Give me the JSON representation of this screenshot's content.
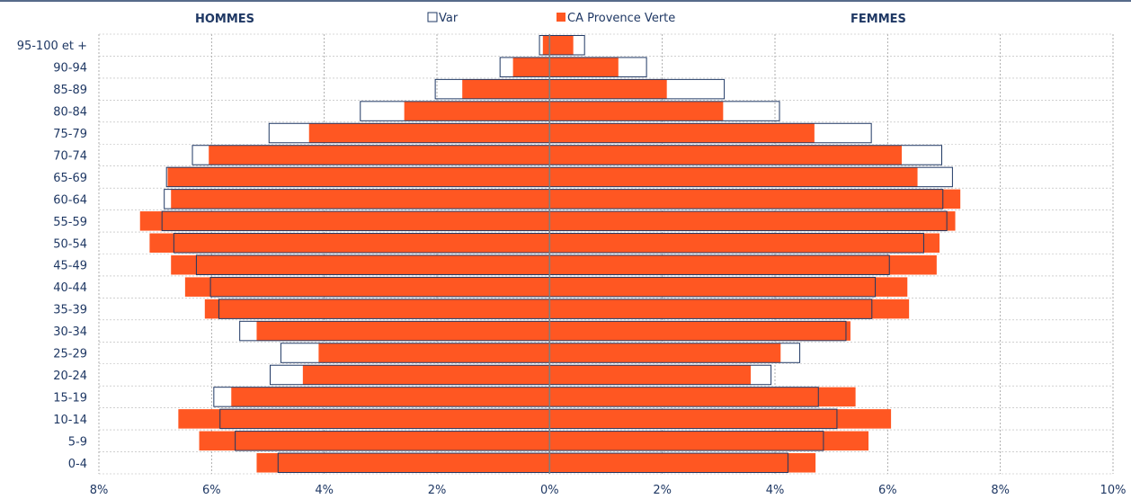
{
  "chart_data": {
    "type": "bar",
    "orientation": "horizontal-pyramid",
    "left_label": "HOMMES",
    "right_label": "FEMMES",
    "categories": [
      "95-100 et +",
      "90-94",
      "85-89",
      "80-84",
      "75-79",
      "70-74",
      "65-69",
      "60-64",
      "55-59",
      "50-54",
      "45-49",
      "40-44",
      "35-39",
      "30-34",
      "25-29",
      "20-24",
      "15-19",
      "10-14",
      "5-9",
      "0-4"
    ],
    "series": [
      {
        "name": "Var",
        "style": "outline",
        "color": "#1f3864",
        "men": [
          0.18,
          0.88,
          2.03,
          3.36,
          4.98,
          6.34,
          6.8,
          6.84,
          6.88,
          6.67,
          6.27,
          6.02,
          5.87,
          5.5,
          4.77,
          4.96,
          5.96,
          5.85,
          5.58,
          4.82
        ],
        "women": [
          0.62,
          1.72,
          3.1,
          4.08,
          5.71,
          6.96,
          7.15,
          6.98,
          7.05,
          6.64,
          6.03,
          5.78,
          5.72,
          5.26,
          4.44,
          3.93,
          4.77,
          5.1,
          4.86,
          4.23
        ]
      },
      {
        "name": "CA Provence Verte",
        "style": "filled",
        "color": "#ff5722",
        "men": [
          0.12,
          0.65,
          1.55,
          2.58,
          4.27,
          6.05,
          6.78,
          6.72,
          7.27,
          7.1,
          6.72,
          6.47,
          6.12,
          5.2,
          4.1,
          4.38,
          5.65,
          6.59,
          6.22,
          5.2
        ],
        "women": [
          0.42,
          1.22,
          2.08,
          3.08,
          4.7,
          6.25,
          6.53,
          7.29,
          7.2,
          6.92,
          6.87,
          6.35,
          6.38,
          5.34,
          4.1,
          3.57,
          5.43,
          6.06,
          5.66,
          4.72
        ]
      }
    ],
    "x_ticks": [
      "8%",
      "6%",
      "4%",
      "2%",
      "0%",
      "2%",
      "4%",
      "6%",
      "8%",
      "10%"
    ],
    "xlim": [
      -8,
      10
    ],
    "grid": true,
    "legend": "top-center"
  }
}
